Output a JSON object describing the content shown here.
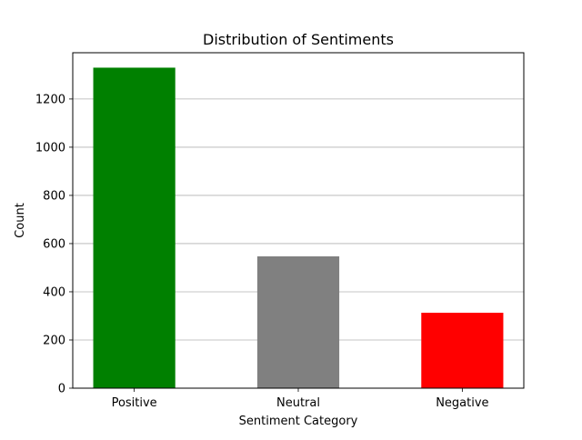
{
  "chart_data": {
    "type": "bar",
    "title": "Distribution of Sentiments",
    "xlabel": "Sentiment Category",
    "ylabel": "Count",
    "categories": [
      "Positive",
      "Neutral",
      "Negative"
    ],
    "values": [
      1330,
      547,
      313
    ],
    "colors": [
      "#008000",
      "#808080",
      "#ff0000"
    ],
    "ylim": [
      0,
      1392
    ],
    "yticks": [
      0,
      200,
      400,
      600,
      800,
      1000,
      1200
    ],
    "grid": {
      "y": true,
      "x": false,
      "color": "#b0b0b0"
    }
  }
}
